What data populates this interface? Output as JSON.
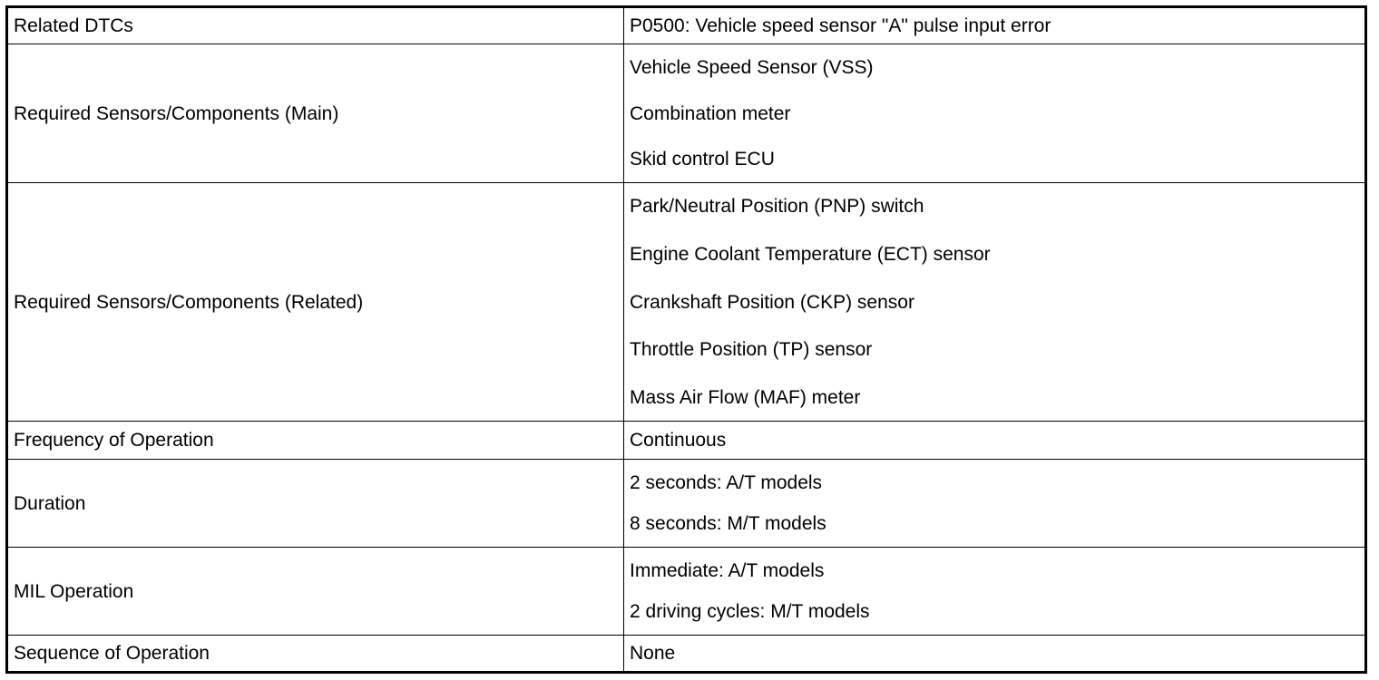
{
  "rows": [
    {
      "label": "Related DTCs",
      "values": [
        "P0500: Vehicle speed sensor \"A\" pulse input error"
      ]
    },
    {
      "label": "Required Sensors/Components (Main)",
      "values": [
        "Vehicle Speed Sensor (VSS)",
        "Combination meter",
        "Skid control ECU"
      ]
    },
    {
      "label": "Required Sensors/Components (Related)",
      "values": [
        "Park/Neutral Position (PNP) switch",
        "Engine Coolant Temperature (ECT) sensor",
        "Crankshaft Position (CKP) sensor",
        "Throttle Position (TP) sensor",
        "Mass Air Flow (MAF) meter"
      ]
    },
    {
      "label": "Frequency of Operation",
      "values": [
        "Continuous"
      ]
    },
    {
      "label": "Duration",
      "values": [
        "2 seconds: A/T models",
        "8 seconds: M/T models"
      ]
    },
    {
      "label": "MIL Operation",
      "values": [
        "Immediate: A/T models",
        "2 driving cycles: M/T models"
      ]
    },
    {
      "label": "Sequence of Operation",
      "values": [
        "None"
      ]
    }
  ]
}
